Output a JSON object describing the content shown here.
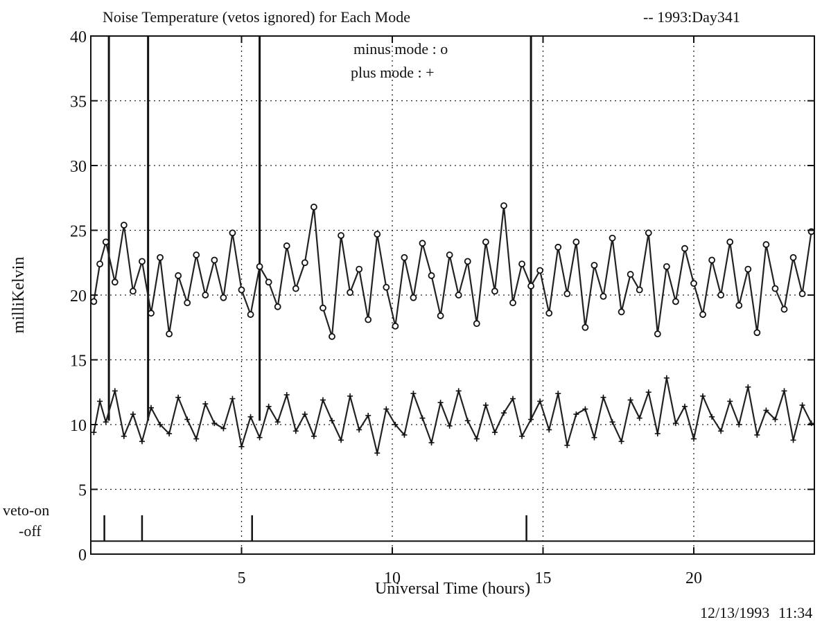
{
  "header": {
    "title": "Noise Temperature (vetos ignored) for Each Mode",
    "day_tag": "-- 1993:Day341"
  },
  "footer": {
    "date": "12/13/1993",
    "time": "11:34"
  },
  "chart_data": {
    "type": "line",
    "xlabel": "Universal Time (hours)",
    "ylabel": "milliKelvin",
    "xlim": [
      0,
      24
    ],
    "ylim": [
      0,
      40
    ],
    "xticks": [
      5,
      10,
      15,
      20
    ],
    "yticks": [
      0,
      5,
      10,
      15,
      20,
      25,
      30,
      35,
      40
    ],
    "grid": true,
    "legend": {
      "placement": "top-center",
      "entries": [
        "minus mode : o",
        "plus  mode : +"
      ]
    },
    "veto_labels": [
      "veto-on",
      "-off"
    ],
    "series": [
      {
        "name": "minus mode",
        "marker": "o",
        "baseline_mean": 20.8,
        "x": [
          0.1,
          0.3,
          0.5,
          0.8,
          1.1,
          1.4,
          1.7,
          2.0,
          2.3,
          2.6,
          2.9,
          3.2,
          3.5,
          3.8,
          4.1,
          4.4,
          4.7,
          5.0,
          5.3,
          5.6,
          5.9,
          6.2,
          6.5,
          6.8,
          7.1,
          7.4,
          7.7,
          8.0,
          8.3,
          8.6,
          8.9,
          9.2,
          9.5,
          9.8,
          10.1,
          10.4,
          10.7,
          11.0,
          11.3,
          11.6,
          11.9,
          12.2,
          12.5,
          12.8,
          13.1,
          13.4,
          13.7,
          14.0,
          14.3,
          14.6,
          14.9,
          15.2,
          15.5,
          15.8,
          16.1,
          16.4,
          16.7,
          17.0,
          17.3,
          17.6,
          17.9,
          18.2,
          18.5,
          18.8,
          19.1,
          19.4,
          19.7,
          20.0,
          20.3,
          20.6,
          20.9,
          21.2,
          21.5,
          21.8,
          22.1,
          22.4,
          22.7,
          23.0,
          23.3,
          23.6,
          23.9
        ],
        "values": [
          19.5,
          22.4,
          24.1,
          21.0,
          25.4,
          20.3,
          22.6,
          18.6,
          22.9,
          17.0,
          21.5,
          19.4,
          23.1,
          20.0,
          22.7,
          19.8,
          24.8,
          20.4,
          18.5,
          22.2,
          21.0,
          19.1,
          23.8,
          20.5,
          22.5,
          26.8,
          19.0,
          16.8,
          24.6,
          20.2,
          22.0,
          18.1,
          24.7,
          20.6,
          17.6,
          22.9,
          19.8,
          24.0,
          21.5,
          18.4,
          23.1,
          20.0,
          22.6,
          17.8,
          24.1,
          20.3,
          26.9,
          19.4,
          22.4,
          20.7,
          21.9,
          18.6,
          23.7,
          20.1,
          24.1,
          17.5,
          22.3,
          19.9,
          24.4,
          18.7,
          21.6,
          20.4,
          24.8,
          17.0,
          22.2,
          19.5,
          23.6,
          20.9,
          18.5,
          22.7,
          20.0,
          24.1,
          19.2,
          22.0,
          17.1,
          23.9,
          20.5,
          18.9,
          22.9,
          20.1,
          24.9
        ]
      },
      {
        "name": "plus mode",
        "marker": "+",
        "baseline_mean": 10.3,
        "x": [
          0.1,
          0.3,
          0.5,
          0.8,
          1.1,
          1.4,
          1.7,
          2.0,
          2.3,
          2.6,
          2.9,
          3.2,
          3.5,
          3.8,
          4.1,
          4.4,
          4.7,
          5.0,
          5.3,
          5.6,
          5.9,
          6.2,
          6.5,
          6.8,
          7.1,
          7.4,
          7.7,
          8.0,
          8.3,
          8.6,
          8.9,
          9.2,
          9.5,
          9.8,
          10.1,
          10.4,
          10.7,
          11.0,
          11.3,
          11.6,
          11.9,
          12.2,
          12.5,
          12.8,
          13.1,
          13.4,
          13.7,
          14.0,
          14.3,
          14.6,
          14.9,
          15.2,
          15.5,
          15.8,
          16.1,
          16.4,
          16.7,
          17.0,
          17.3,
          17.6,
          17.9,
          18.2,
          18.5,
          18.8,
          19.1,
          19.4,
          19.7,
          20.0,
          20.3,
          20.6,
          20.9,
          21.2,
          21.5,
          21.8,
          22.1,
          22.4,
          22.7,
          23.0,
          23.3,
          23.6,
          23.9
        ],
        "values": [
          9.4,
          11.8,
          10.2,
          12.6,
          9.1,
          10.8,
          8.7,
          11.3,
          10.0,
          9.3,
          12.1,
          10.4,
          8.9,
          11.6,
          10.1,
          9.7,
          12.0,
          8.3,
          10.6,
          9.0,
          11.4,
          10.2,
          12.3,
          9.5,
          10.8,
          9.1,
          11.9,
          10.3,
          8.8,
          12.2,
          9.6,
          10.7,
          7.8,
          11.2,
          10.0,
          9.2,
          12.4,
          10.5,
          8.6,
          11.7,
          9.9,
          12.6,
          10.3,
          8.9,
          11.5,
          9.4,
          10.9,
          12.0,
          9.1,
          10.4,
          11.8,
          9.6,
          12.4,
          8.4,
          10.8,
          11.2,
          9.0,
          12.1,
          10.2,
          8.7,
          11.9,
          10.5,
          12.5,
          9.3,
          13.6,
          10.1,
          11.4,
          8.9,
          12.2,
          10.6,
          9.5,
          11.8,
          10.0,
          12.9,
          9.2,
          11.1,
          10.4,
          12.6,
          8.8,
          11.5,
          10.1
        ]
      }
    ],
    "spikes": [
      {
        "x": 0.6,
        "top": 40
      },
      {
        "x": 1.9,
        "top": 40
      },
      {
        "x": 5.6,
        "top": 40
      },
      {
        "x": 14.6,
        "top": 40
      }
    ],
    "veto_marks": [
      {
        "x": 0.45,
        "height": 3
      },
      {
        "x": 1.7,
        "height": 3
      },
      {
        "x": 5.35,
        "height": 3
      },
      {
        "x": 14.45,
        "height": 3
      }
    ]
  }
}
